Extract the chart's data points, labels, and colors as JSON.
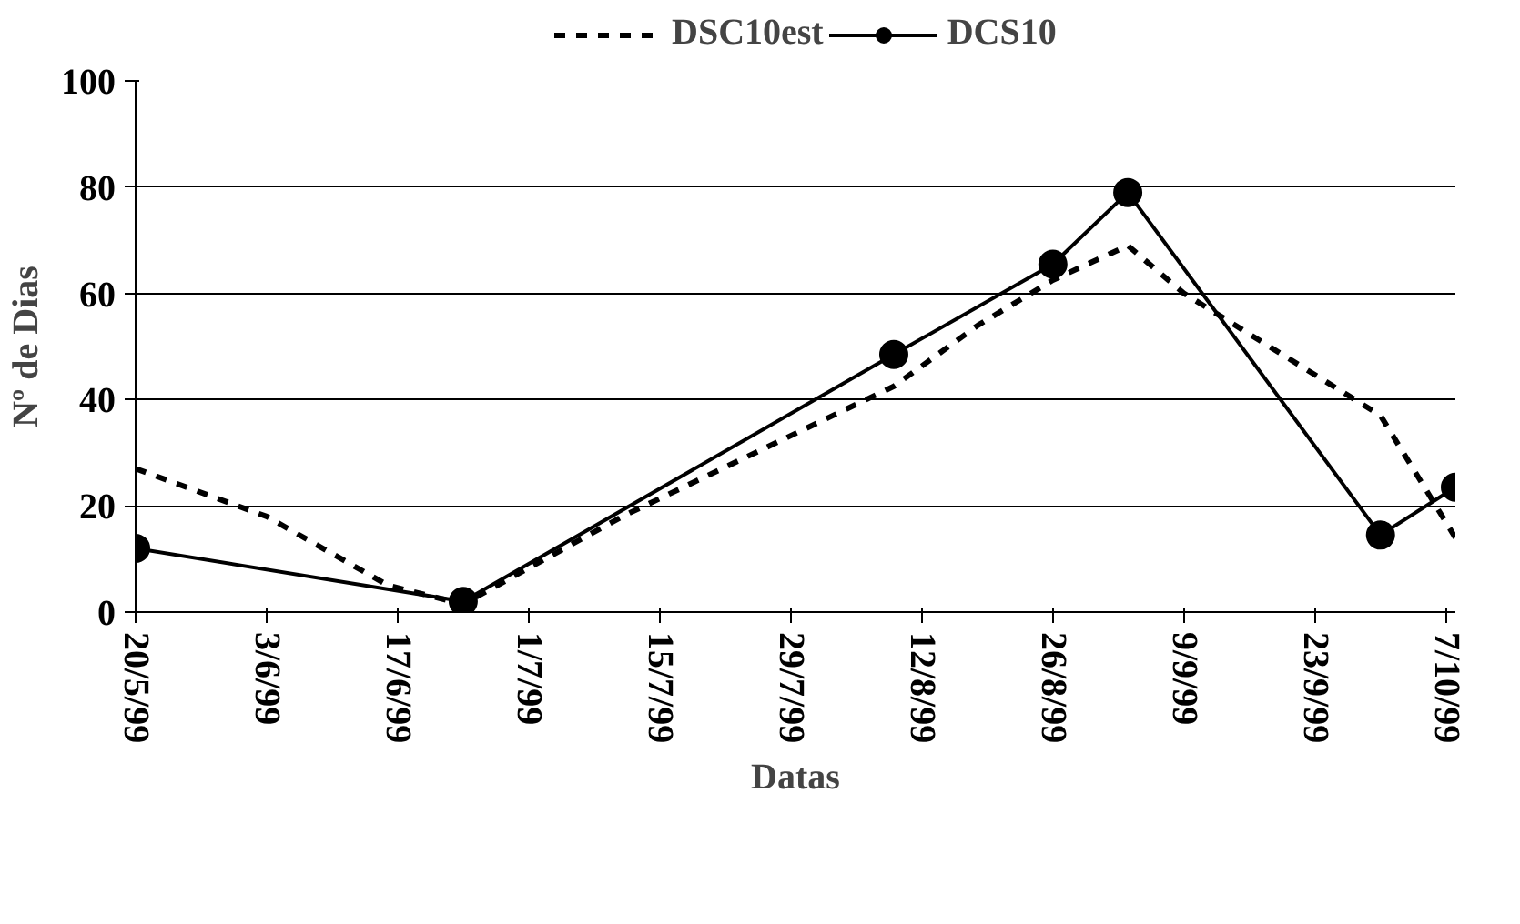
{
  "chart_data": {
    "type": "line",
    "xlabel": "Datas",
    "ylabel": "Nº de Dias",
    "xlim": [
      "1999-05-20",
      "1999-10-08"
    ],
    "ylim": [
      0,
      100
    ],
    "yticks": [
      0,
      20,
      40,
      60,
      80,
      100
    ],
    "xticks": [
      {
        "value": "1999-05-20",
        "label": "20/5/99"
      },
      {
        "value": "1999-06-03",
        "label": "3/6/99"
      },
      {
        "value": "1999-06-17",
        "label": "17/6/99"
      },
      {
        "value": "1999-07-01",
        "label": "1/7/99"
      },
      {
        "value": "1999-07-15",
        "label": "15/7/99"
      },
      {
        "value": "1999-07-29",
        "label": "29/7/99"
      },
      {
        "value": "1999-08-12",
        "label": "12/8/99"
      },
      {
        "value": "1999-08-26",
        "label": "26/8/99"
      },
      {
        "value": "1999-09-09",
        "label": "9/9/99"
      },
      {
        "value": "1999-09-23",
        "label": "23/9/99"
      },
      {
        "value": "1999-10-07",
        "label": "7/10/99"
      }
    ],
    "grid": "y",
    "legend": "top",
    "series": [
      {
        "name": "DSC10est",
        "color": "#000000",
        "line_style": "dashed",
        "marker": "none",
        "x": [
          "1999-05-20",
          "1999-06-03",
          "1999-06-16",
          "1999-06-24",
          "1999-07-11",
          "1999-08-09",
          "1999-08-18",
          "1999-08-26",
          "1999-09-03",
          "1999-09-09",
          "1999-09-30",
          "1999-10-08"
        ],
        "values": [
          27,
          18,
          5,
          1.5,
          18,
          42.5,
          54,
          62.5,
          69,
          60,
          37,
          14
        ]
      },
      {
        "name": "DCS10",
        "color": "#000000",
        "line_style": "solid",
        "marker": "circle",
        "x": [
          "1999-05-20",
          "1999-06-24",
          "1999-08-09",
          "1999-08-26",
          "1999-09-03",
          "1999-09-30",
          "1999-10-08"
        ],
        "values": [
          12,
          2,
          48.5,
          65.5,
          79,
          14.5,
          23.5
        ]
      }
    ]
  }
}
